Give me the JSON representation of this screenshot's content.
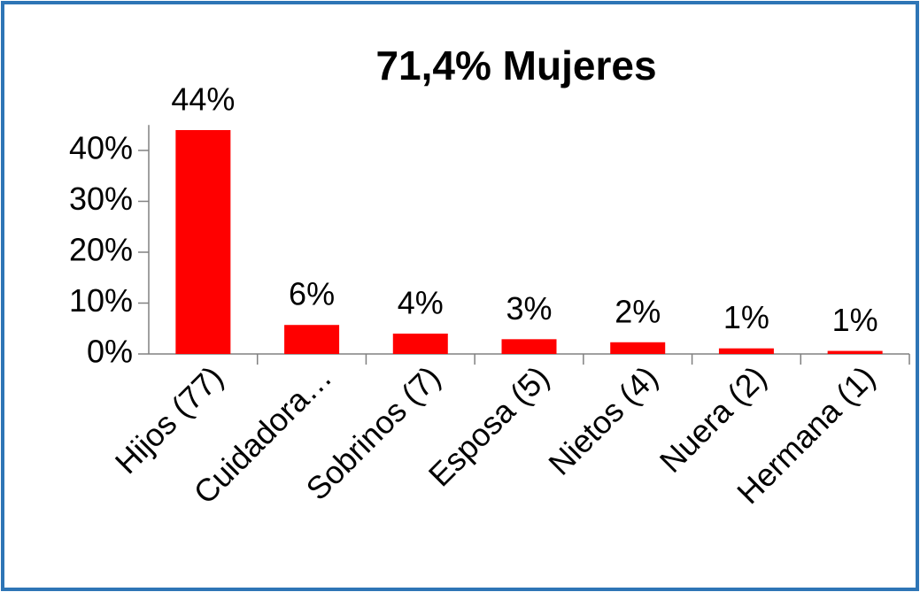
{
  "chart_data": {
    "type": "bar",
    "title": "71,4% Mujeres",
    "categories": [
      "Hijos (77)",
      "Cuidadora…",
      "Sobrinos (7)",
      "Esposa (5)",
      "Nietos (4)",
      "Nuera (2)",
      "Hermana (1)"
    ],
    "values": [
      44,
      5.7,
      4,
      2.9,
      2.3,
      1.1,
      0.6
    ],
    "value_labels": [
      "44%",
      "6%",
      "4%",
      "3%",
      "2%",
      "1%",
      "1%"
    ],
    "color": "#ff0000",
    "ylim": [
      0,
      45
    ],
    "yticks": [
      {
        "value": 0,
        "label": "0%"
      },
      {
        "value": 10,
        "label": "10%"
      },
      {
        "value": 20,
        "label": "20%"
      },
      {
        "value": 30,
        "label": "30%"
      },
      {
        "value": 40,
        "label": "40%"
      }
    ],
    "grid": false
  }
}
